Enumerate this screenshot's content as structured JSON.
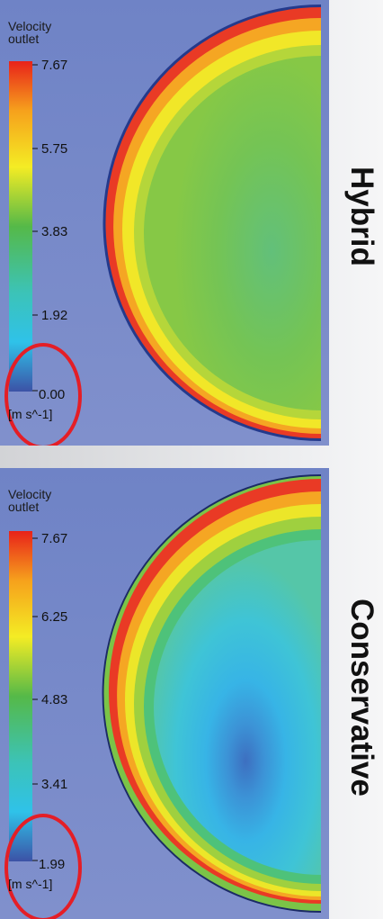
{
  "panels": [
    {
      "colorbar_title_line1": "Velocity",
      "colorbar_title_line2": "outlet",
      "ticks": [
        "7.67",
        "5.75",
        "3.83",
        "1.92",
        "0.00"
      ],
      "units": "[m s^-1]",
      "method_label": "Hybrid"
    },
    {
      "colorbar_title_line1": "Velocity",
      "colorbar_title_line2": "outlet",
      "ticks": [
        "7.67",
        "6.25",
        "4.83",
        "3.41",
        "1.99"
      ],
      "units": "[m s^-1]",
      "method_label": "Conservative"
    }
  ],
  "colors": {
    "background_blue": "#7588c8",
    "colorbar": [
      "#e8221a",
      "#f6a11c",
      "#f4ec24",
      "#55b948",
      "#2fc2e9",
      "#3c52a6"
    ],
    "highlight_ellipse": "#e41e26"
  }
}
